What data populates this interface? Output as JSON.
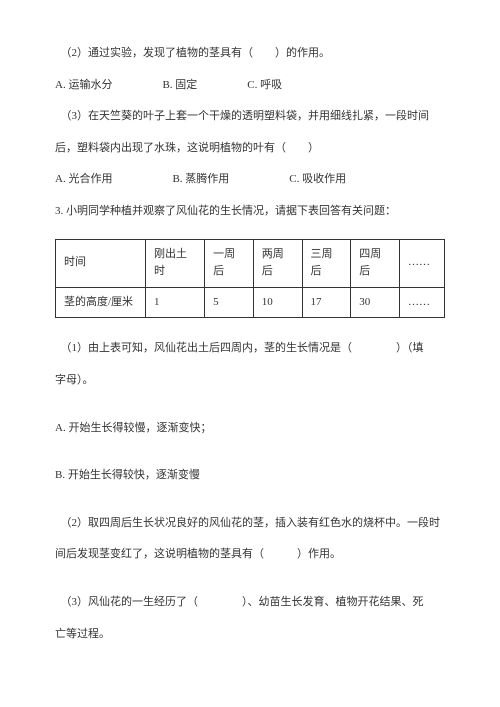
{
  "q2_sub2": "（2）通过实验，发现了植物的茎具有（　　）的作用。",
  "q2_sub2_opts": {
    "a": "A. 运输水分",
    "b": "B. 固定",
    "c": "C. 呼吸"
  },
  "q2_sub3_line1": "（3）在天竺葵的叶子上套一个干燥的透明塑料袋，并用细线扎紧，一段时间",
  "q2_sub3_line2": "后，塑料袋内出现了水珠，这说明植物的叶有（　　）",
  "q2_sub3_opts": {
    "a": "A. 光合作用",
    "b": "B. 蒸腾作用",
    "c": "C. 吸收作用"
  },
  "q3_intro": "3. 小明同学种植并观察了风仙花的生长情况，请据下表回答有关问题：",
  "table": {
    "header": [
      "时间",
      "刚出土时",
      "一周后",
      "两周后",
      "三周后",
      "四周后",
      "……"
    ],
    "row1": [
      "茎的高度/厘米",
      "1",
      "5",
      "10",
      "17",
      "30",
      "……"
    ]
  },
  "q3_sub1_line1": "（1）由上表可知，风仙花出土后四周内，茎的生长情况是（　　　　）（填",
  "q3_sub1_line2": "字母）。",
  "q3_sub1_optA": "A. 开始生长得较慢，逐渐变快；",
  "q3_sub1_optB": "B. 开始生长得较快，逐渐变慢",
  "q3_sub2_line1": "（2）取四周后生长状况良好的风仙花的茎，插入装有红色水的烧杯中。一段时",
  "q3_sub2_line2": "间后发现茎变红了，这说明植物的茎具有（　　　）作用。",
  "q3_sub3_line1": "（3）风仙花的一生经历了（　　　　）、幼苗生长发育、植物开花结果、死",
  "q3_sub3_line2": "亡等过程。"
}
